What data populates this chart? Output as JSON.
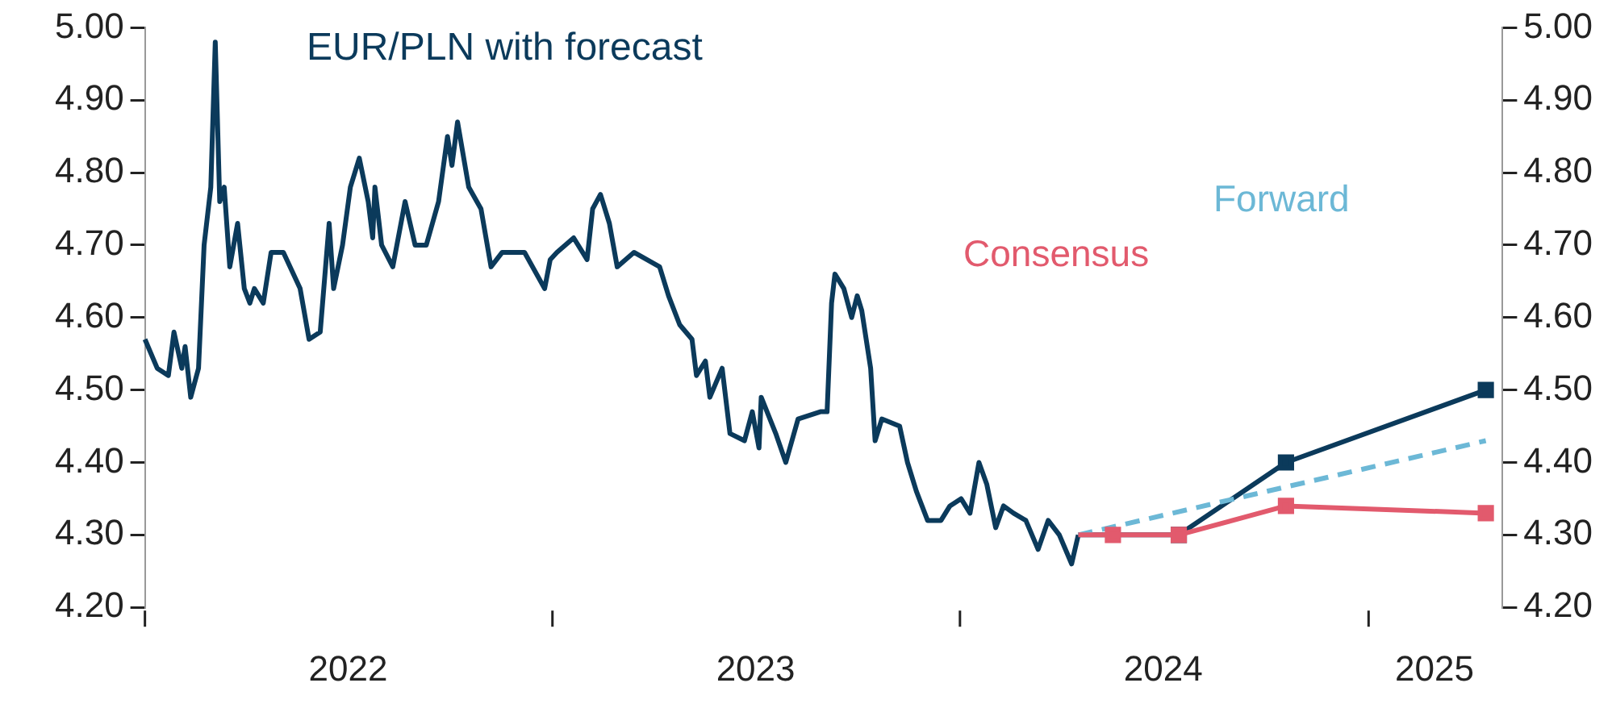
{
  "chart_data": {
    "type": "line",
    "title": "EUR/PLN with forecast",
    "xlim": [
      "2022-01-01",
      "2025-05-01"
    ],
    "xticks": [
      {
        "value": "2022-01-01",
        "label": null
      },
      {
        "value": "2022-07-02",
        "label": "2022"
      },
      {
        "value": "2023-01-01",
        "label": null
      },
      {
        "value": "2023-07-02",
        "label": "2023"
      },
      {
        "value": "2024-01-01",
        "label": null
      },
      {
        "value": "2024-07-01",
        "label": "2024"
      },
      {
        "value": "2025-01-01",
        "label": null
      },
      {
        "value": "2025-03-01",
        "label": "2025"
      }
    ],
    "ylim": [
      4.2,
      5.0
    ],
    "yticks": [
      {
        "value": 4.2,
        "label": "4.20"
      },
      {
        "value": 4.3,
        "label": "4.30"
      },
      {
        "value": 4.4,
        "label": "4.40"
      },
      {
        "value": 4.5,
        "label": "4.50"
      },
      {
        "value": 4.6,
        "label": "4.60"
      },
      {
        "value": 4.7,
        "label": "4.70"
      },
      {
        "value": 4.8,
        "label": "4.80"
      },
      {
        "value": 4.9,
        "label": "4.90"
      },
      {
        "value": 5.0,
        "label": "5.00"
      }
    ],
    "y2lim": [
      4.2,
      5.0
    ],
    "y2ticks": [
      {
        "value": 4.2,
        "label": "4.20"
      },
      {
        "value": 4.3,
        "label": "4.30"
      },
      {
        "value": 4.4,
        "label": "4.40"
      },
      {
        "value": 4.5,
        "label": "4.50"
      },
      {
        "value": 4.6,
        "label": "4.60"
      },
      {
        "value": 4.7,
        "label": "4.70"
      },
      {
        "value": 4.8,
        "label": "4.80"
      },
      {
        "value": 4.9,
        "label": "4.90"
      },
      {
        "value": 5.0,
        "label": "5.00"
      }
    ],
    "grid": false,
    "legend": false,
    "series": [
      {
        "color": "#0b3a5b",
        "line_style": "solid",
        "marker": "none",
        "x": [
          "2022-01-01",
          "2022-01-12",
          "2022-01-22",
          "2022-01-27",
          "2022-02-03",
          "2022-02-06",
          "2022-02-11",
          "2022-02-18",
          "2022-02-23",
          "2022-03-01",
          "2022-03-05",
          "2022-03-09",
          "2022-03-13",
          "2022-03-18",
          "2022-03-25",
          "2022-03-31",
          "2022-04-05",
          "2022-04-09",
          "2022-04-17",
          "2022-04-24",
          "2022-05-05",
          "2022-05-20",
          "2022-05-28",
          "2022-06-07",
          "2022-06-15",
          "2022-06-19",
          "2022-06-27",
          "2022-07-04",
          "2022-07-12",
          "2022-07-20",
          "2022-07-24",
          "2022-07-26",
          "2022-08-01",
          "2022-08-11",
          "2022-08-22",
          "2022-08-31",
          "2022-09-10",
          "2022-09-21",
          "2022-09-29",
          "2022-10-03",
          "2022-10-08",
          "2022-10-18",
          "2022-10-29",
          "2022-11-07",
          "2022-11-17",
          "2022-12-07",
          "2022-12-25",
          "2022-12-30",
          "2023-01-05",
          "2023-01-20",
          "2023-02-01",
          "2023-02-06",
          "2023-02-13",
          "2023-02-21",
          "2023-02-28",
          "2023-03-15",
          "2023-04-07",
          "2023-04-15",
          "2023-04-25",
          "2023-05-06",
          "2023-05-10",
          "2023-05-18",
          "2023-05-22",
          "2023-06-02",
          "2023-06-09",
          "2023-06-22",
          "2023-06-29",
          "2023-07-05",
          "2023-07-07",
          "2023-07-20",
          "2023-07-29",
          "2023-08-09",
          "2023-08-29",
          "2023-09-04",
          "2023-09-08",
          "2023-09-11",
          "2023-09-19",
          "2023-09-26",
          "2023-10-01",
          "2023-10-05",
          "2023-10-13",
          "2023-10-17",
          "2023-10-23",
          "2023-11-08",
          "2023-11-15",
          "2023-11-23",
          "2023-12-03",
          "2023-12-15",
          "2023-12-23",
          "2024-01-02",
          "2024-01-10",
          "2024-01-18",
          "2024-01-25",
          "2024-02-02",
          "2024-02-09",
          "2024-02-18",
          "2024-02-29",
          "2024-03-11",
          "2024-03-20",
          "2024-03-30",
          "2024-04-10",
          "2024-04-16"
        ],
        "values": [
          4.57,
          4.53,
          4.52,
          4.58,
          4.53,
          4.56,
          4.49,
          4.53,
          4.7,
          4.78,
          4.98,
          4.76,
          4.78,
          4.67,
          4.73,
          4.64,
          4.62,
          4.64,
          4.62,
          4.69,
          4.69,
          4.64,
          4.57,
          4.58,
          4.73,
          4.64,
          4.7,
          4.78,
          4.82,
          4.76,
          4.71,
          4.78,
          4.7,
          4.67,
          4.76,
          4.7,
          4.7,
          4.76,
          4.85,
          4.81,
          4.87,
          4.78,
          4.75,
          4.67,
          4.69,
          4.69,
          4.64,
          4.68,
          4.69,
          4.71,
          4.68,
          4.75,
          4.77,
          4.73,
          4.67,
          4.69,
          4.67,
          4.63,
          4.59,
          4.57,
          4.52,
          4.54,
          4.49,
          4.53,
          4.44,
          4.43,
          4.47,
          4.42,
          4.49,
          4.44,
          4.4,
          4.46,
          4.47,
          4.47,
          4.62,
          4.66,
          4.64,
          4.6,
          4.63,
          4.61,
          4.53,
          4.43,
          4.46,
          4.45,
          4.4,
          4.36,
          4.32,
          4.32,
          4.34,
          4.35,
          4.33,
          4.4,
          4.37,
          4.31,
          4.34,
          4.33,
          4.32,
          4.28,
          4.32,
          4.3,
          4.26,
          4.3
        ]
      },
      {
        "color": "#0b3a5b",
        "line_style": "solid",
        "marker": "square",
        "x": [
          "2024-04-16",
          "2024-07-15",
          "2024-10-19",
          "2025-04-16"
        ],
        "values": [
          4.3,
          4.3,
          4.4,
          4.5
        ]
      },
      {
        "name": "Forward",
        "color": "#6cb8d6",
        "line_style": "dashed",
        "marker": "none",
        "x": [
          "2024-04-16",
          "2025-04-16"
        ],
        "values": [
          4.3,
          4.43
        ]
      },
      {
        "name": "Consensus",
        "color": "#e25a6d",
        "line_style": "solid",
        "marker": "square",
        "x": [
          "2024-04-16",
          "2024-05-17",
          "2024-07-15",
          "2024-10-19",
          "2025-04-16"
        ],
        "values": [
          4.3,
          4.3,
          4.3,
          4.34,
          4.33
        ]
      }
    ]
  }
}
